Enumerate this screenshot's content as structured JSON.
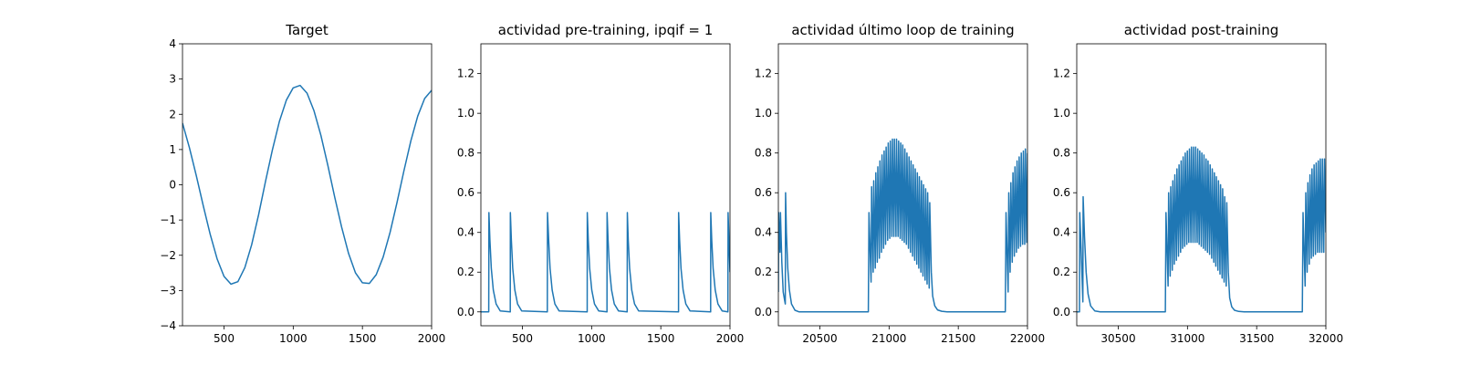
{
  "figure": {
    "background": "#ffffff"
  },
  "chart_data": [
    {
      "type": "line",
      "title": "Target",
      "xlabel": "",
      "ylabel": "",
      "xlim": [
        200,
        2000
      ],
      "ylim": [
        -4,
        4
      ],
      "xticks": [
        500,
        1000,
        1500,
        2000
      ],
      "yticks": [
        -4,
        -3,
        -2,
        -1,
        0,
        1,
        2,
        3,
        4
      ],
      "grid": false,
      "color": "#1f77b4",
      "series": [
        {
          "x": [
            200,
            250,
            300,
            350,
            400,
            450,
            500,
            550,
            600,
            650,
            700,
            750,
            800,
            850,
            900,
            950,
            1000,
            1050,
            1100,
            1150,
            1200,
            1250,
            1300,
            1350,
            1400,
            1450,
            1500,
            1550,
            1600,
            1650,
            1700,
            1750,
            1800,
            1850,
            1900,
            1950,
            2000
          ],
          "y": [
            1.75,
            1.05,
            0.25,
            -0.6,
            -1.4,
            -2.1,
            -2.6,
            -2.82,
            -2.75,
            -2.35,
            -1.7,
            -0.85,
            0.1,
            1.0,
            1.8,
            2.4,
            2.75,
            2.82,
            2.6,
            2.1,
            1.4,
            0.55,
            -0.35,
            -1.2,
            -1.95,
            -2.5,
            -2.78,
            -2.8,
            -2.55,
            -2.05,
            -1.35,
            -0.5,
            0.4,
            1.25,
            1.95,
            2.45,
            2.68
          ]
        }
      ]
    },
    {
      "type": "line",
      "title": "actividad pre-training, ipqif = 1",
      "xlabel": "",
      "ylabel": "",
      "xlim": [
        200,
        2000
      ],
      "ylim": [
        -0.07,
        1.35
      ],
      "xticks": [
        500,
        1000,
        1500,
        2000
      ],
      "yticks": [
        0.0,
        0.2,
        0.4,
        0.6,
        0.8,
        1.0,
        1.2
      ],
      "grid": false,
      "color": "#1f77b4",
      "series": [
        {
          "x": [
            200,
            257,
            258,
            265,
            275,
            290,
            310,
            340,
            412,
            413,
            420,
            430,
            445,
            465,
            495,
            680,
            681,
            690,
            700,
            715,
            735,
            765,
            968,
            969,
            976,
            986,
            1001,
            1021,
            1051,
            1111,
            1112,
            1119,
            1129,
            1144,
            1164,
            1194,
            1257,
            1258,
            1265,
            1275,
            1290,
            1310,
            1340,
            1628,
            1629,
            1636,
            1646,
            1661,
            1681,
            1711,
            1860,
            1861,
            1868,
            1878,
            1893,
            1913,
            1943,
            1985,
            1986,
            1990,
            1995,
            2000
          ],
          "y": [
            0.0,
            0.0,
            0.5,
            0.36,
            0.22,
            0.11,
            0.04,
            0.005,
            0.0,
            0.5,
            0.36,
            0.22,
            0.11,
            0.04,
            0.005,
            0.0,
            0.5,
            0.36,
            0.22,
            0.11,
            0.04,
            0.005,
            0.0,
            0.5,
            0.36,
            0.22,
            0.11,
            0.04,
            0.005,
            0.0,
            0.5,
            0.36,
            0.22,
            0.11,
            0.04,
            0.005,
            0.0,
            0.5,
            0.36,
            0.22,
            0.11,
            0.04,
            0.005,
            0.0,
            0.5,
            0.36,
            0.22,
            0.11,
            0.04,
            0.005,
            0.0,
            0.5,
            0.36,
            0.22,
            0.11,
            0.04,
            0.005,
            0.0,
            0.5,
            0.42,
            0.3,
            0.2
          ]
        }
      ]
    },
    {
      "type": "line",
      "title": "actividad último loop de training",
      "xlabel": "",
      "ylabel": "",
      "xlim": [
        20200,
        22000
      ],
      "ylim": [
        -0.07,
        1.35
      ],
      "xticks": [
        20500,
        21000,
        21500,
        22000
      ],
      "yticks": [
        0.0,
        0.2,
        0.4,
        0.6,
        0.8,
        1.0,
        1.2
      ],
      "grid": false,
      "color": "#1f77b4",
      "series": [
        {
          "x": [
            20200,
            20202,
            20212,
            20215,
            20225,
            20235,
            20245,
            20250,
            20252,
            20258,
            20268,
            20280,
            20295,
            20320,
            20350,
            20850,
            20855,
            20870,
            20874,
            20885,
            20889,
            20900,
            20904,
            20915,
            20919,
            20930,
            20934,
            20945,
            20949,
            20960,
            20964,
            20975,
            20979,
            20990,
            20994,
            21005,
            21009,
            21020,
            21024,
            21035,
            21039,
            21050,
            21054,
            21065,
            21069,
            21080,
            21084,
            21095,
            21099,
            21110,
            21114,
            21125,
            21129,
            21140,
            21144,
            21155,
            21159,
            21170,
            21174,
            21185,
            21189,
            21200,
            21204,
            21215,
            21219,
            21230,
            21234,
            21245,
            21249,
            21260,
            21264,
            21275,
            21279,
            21290,
            21294,
            21305,
            21315,
            21330,
            21350,
            21380,
            21420,
            21840,
            21845,
            21860,
            21865,
            21875,
            21880,
            21890,
            21895,
            21905,
            21910,
            21920,
            21925,
            21935,
            21940,
            21950,
            21955,
            21965,
            21970,
            21980,
            21985,
            21995,
            22000
          ],
          "y": [
            0.1,
            0.5,
            0.3,
            0.5,
            0.25,
            0.1,
            0.06,
            0.04,
            0.6,
            0.4,
            0.22,
            0.11,
            0.04,
            0.008,
            0.0,
            0.0,
            0.5,
            0.15,
            0.63,
            0.2,
            0.66,
            0.22,
            0.7,
            0.25,
            0.73,
            0.27,
            0.76,
            0.3,
            0.79,
            0.32,
            0.81,
            0.34,
            0.83,
            0.36,
            0.85,
            0.37,
            0.86,
            0.38,
            0.87,
            0.38,
            0.87,
            0.38,
            0.87,
            0.38,
            0.86,
            0.37,
            0.85,
            0.36,
            0.84,
            0.35,
            0.82,
            0.34,
            0.8,
            0.32,
            0.78,
            0.3,
            0.76,
            0.28,
            0.74,
            0.26,
            0.72,
            0.24,
            0.7,
            0.22,
            0.68,
            0.2,
            0.66,
            0.18,
            0.64,
            0.16,
            0.62,
            0.14,
            0.6,
            0.12,
            0.55,
            0.2,
            0.08,
            0.03,
            0.01,
            0.003,
            0.0,
            0.0,
            0.5,
            0.1,
            0.6,
            0.2,
            0.65,
            0.25,
            0.7,
            0.28,
            0.73,
            0.3,
            0.76,
            0.32,
            0.78,
            0.33,
            0.8,
            0.34,
            0.81,
            0.34,
            0.82,
            0.35,
            0.8
          ]
        }
      ]
    },
    {
      "type": "line",
      "title": "actividad post-training",
      "xlabel": "",
      "ylabel": "",
      "xlim": [
        30200,
        32000
      ],
      "ylim": [
        -0.07,
        1.35
      ],
      "xticks": [
        30500,
        31000,
        31500,
        32000
      ],
      "yticks": [
        0.0,
        0.2,
        0.4,
        0.6,
        0.8,
        1.0,
        1.2
      ],
      "grid": false,
      "color": "#1f77b4",
      "series": [
        {
          "x": [
            30200,
            30210,
            30220,
            30222,
            30232,
            30244,
            30246,
            30256,
            30268,
            30282,
            30300,
            30330,
            30370,
            30840,
            30845,
            30860,
            30864,
            30875,
            30879,
            30890,
            30894,
            30905,
            30909,
            30920,
            30924,
            30935,
            30939,
            30950,
            30954,
            30965,
            30969,
            30980,
            30984,
            30995,
            30999,
            31010,
            31014,
            31025,
            31029,
            31040,
            31044,
            31055,
            31059,
            31070,
            31074,
            31085,
            31089,
            31100,
            31104,
            31115,
            31119,
            31130,
            31134,
            31145,
            31149,
            31160,
            31164,
            31175,
            31179,
            31190,
            31194,
            31205,
            31209,
            31220,
            31224,
            31235,
            31239,
            31250,
            31254,
            31265,
            31269,
            31280,
            31284,
            31295,
            31305,
            31320,
            31340,
            31370,
            31410,
            31830,
            31835,
            31850,
            31855,
            31865,
            31870,
            31880,
            31885,
            31895,
            31900,
            31910,
            31915,
            31925,
            31930,
            31940,
            31945,
            31955,
            31960,
            31970,
            31975,
            31985,
            31990,
            32000
          ],
          "y": [
            0.0,
            0.0,
            0.0,
            0.5,
            0.3,
            0.05,
            0.58,
            0.38,
            0.2,
            0.09,
            0.03,
            0.005,
            0.0,
            0.0,
            0.5,
            0.13,
            0.6,
            0.18,
            0.63,
            0.21,
            0.66,
            0.24,
            0.69,
            0.26,
            0.72,
            0.28,
            0.74,
            0.3,
            0.76,
            0.32,
            0.78,
            0.33,
            0.8,
            0.34,
            0.81,
            0.35,
            0.82,
            0.35,
            0.83,
            0.35,
            0.83,
            0.35,
            0.83,
            0.35,
            0.82,
            0.34,
            0.81,
            0.33,
            0.8,
            0.32,
            0.79,
            0.31,
            0.77,
            0.3,
            0.76,
            0.29,
            0.74,
            0.27,
            0.72,
            0.25,
            0.7,
            0.23,
            0.68,
            0.21,
            0.66,
            0.19,
            0.64,
            0.17,
            0.62,
            0.15,
            0.58,
            0.13,
            0.55,
            0.2,
            0.07,
            0.025,
            0.008,
            0.002,
            0.0,
            0.0,
            0.5,
            0.13,
            0.6,
            0.2,
            0.65,
            0.24,
            0.69,
            0.27,
            0.72,
            0.28,
            0.74,
            0.29,
            0.75,
            0.3,
            0.76,
            0.3,
            0.77,
            0.3,
            0.77,
            0.3,
            0.77,
            0.4
          ]
        }
      ]
    }
  ]
}
